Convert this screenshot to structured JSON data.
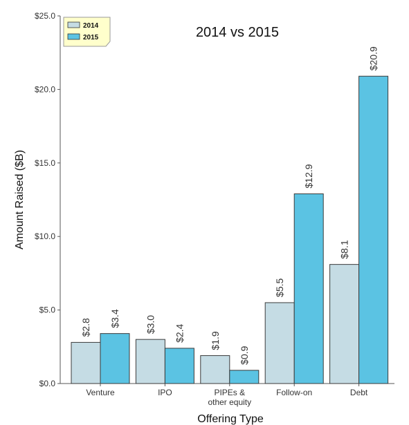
{
  "chart_data": {
    "type": "bar",
    "title": "2014 vs 2015",
    "xlabel": "Offering Type",
    "ylabel": "Amount Raised ($B)",
    "ylim": [
      0,
      25
    ],
    "yticks": [
      "$0.0",
      "$5.0",
      "$10.0",
      "$15.0",
      "$20.0",
      "$25.0"
    ],
    "categories": [
      "Venture",
      "IPO",
      "PIPEs & other equity",
      "Follow-on",
      "Debt"
    ],
    "series": [
      {
        "name": "2014",
        "values": [
          2.8,
          3.0,
          1.9,
          5.5,
          8.1
        ],
        "labels": [
          "$2.8",
          "$3.0",
          "$1.9",
          "$5.5",
          "$8.1"
        ],
        "color": "#c5dce4"
      },
      {
        "name": "2015",
        "values": [
          3.4,
          2.4,
          0.9,
          12.9,
          20.9
        ],
        "labels": [
          "$3.4",
          "$2.4",
          "$0.9",
          "$12.9",
          "$20.9"
        ],
        "color": "#5bc3e3"
      }
    ],
    "legend": {
      "position": "top-left",
      "background": "#ffffcc"
    },
    "grid": false
  }
}
